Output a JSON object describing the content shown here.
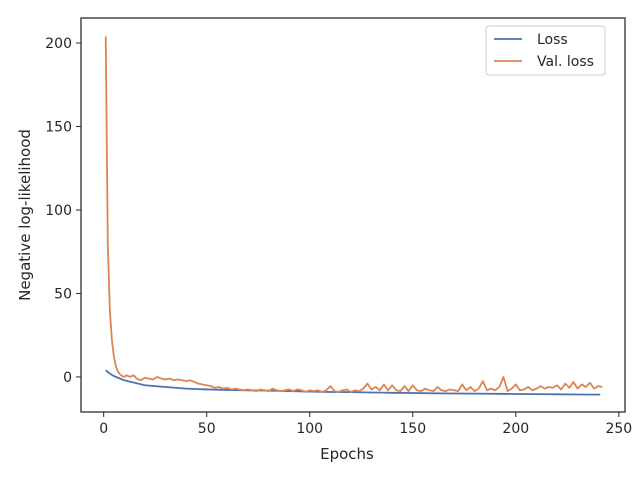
{
  "chart_data": {
    "type": "line",
    "title": "",
    "xlabel": "Epochs",
    "ylabel": "Negative log-likelihood",
    "xlim": [
      -11,
      253
    ],
    "ylim": [
      -21,
      215
    ],
    "xticks": [
      0,
      50,
      100,
      150,
      200,
      250
    ],
    "yticks": [
      0,
      50,
      100,
      150,
      200
    ],
    "grid": false,
    "legend_position": "top-right",
    "series": [
      {
        "name": "Loss",
        "color": "#4c72b0",
        "x": [
          1,
          3,
          5,
          8,
          10,
          15,
          20,
          25,
          30,
          40,
          50,
          60,
          70,
          80,
          90,
          100,
          110,
          120,
          130,
          140,
          150,
          160,
          170,
          180,
          190,
          200,
          210,
          220,
          230,
          241
        ],
        "y": [
          4,
          2,
          0.5,
          -1,
          -2,
          -3.5,
          -5,
          -5.5,
          -6,
          -7,
          -7.5,
          -7.8,
          -8,
          -8.2,
          -8.5,
          -8.8,
          -9,
          -9.1,
          -9.3,
          -9.5,
          -9.6,
          -9.8,
          -9.9,
          -10,
          -10.1,
          -10.2,
          -10.3,
          -10.4,
          -10.5,
          -10.6
        ]
      },
      {
        "name": "Val. loss",
        "color": "#dd8452",
        "x": [
          1,
          2,
          3,
          4,
          5,
          6,
          7,
          8,
          9,
          10,
          11,
          12,
          13,
          14,
          15,
          16,
          18,
          20,
          22,
          24,
          26,
          28,
          30,
          32,
          34,
          36,
          38,
          40,
          42,
          44,
          46,
          48,
          50,
          52,
          54,
          56,
          58,
          60,
          62,
          64,
          66,
          68,
          70,
          72,
          74,
          76,
          78,
          80,
          82,
          84,
          86,
          88,
          90,
          92,
          94,
          96,
          98,
          100,
          102,
          104,
          106,
          108,
          110,
          112,
          114,
          116,
          118,
          120,
          122,
          124,
          126,
          128,
          130,
          132,
          134,
          136,
          138,
          140,
          142,
          144,
          146,
          148,
          150,
          152,
          154,
          156,
          158,
          160,
          162,
          164,
          166,
          168,
          170,
          172,
          174,
          176,
          178,
          180,
          182,
          184,
          186,
          188,
          190,
          192,
          194,
          196,
          198,
          200,
          202,
          204,
          206,
          208,
          210,
          212,
          214,
          216,
          218,
          220,
          222,
          224,
          226,
          228,
          230,
          232,
          234,
          236,
          238,
          240,
          242
        ],
        "y": [
          204,
          80,
          40,
          22,
          12,
          6,
          3,
          1.5,
          0.5,
          0,
          1,
          0.5,
          0,
          1,
          0.5,
          -1,
          -2,
          -0.5,
          -1,
          -1.5,
          0,
          -1,
          -1.5,
          -1,
          -2,
          -1.5,
          -2,
          -2.5,
          -2,
          -3,
          -4,
          -4.5,
          -5,
          -5.5,
          -6.5,
          -6,
          -7,
          -6.5,
          -7.5,
          -7,
          -7.5,
          -8,
          -7.5,
          -8,
          -8.5,
          -7.5,
          -8,
          -8.5,
          -7,
          -8,
          -8.5,
          -8,
          -7.5,
          -8.5,
          -7.5,
          -8,
          -9,
          -8,
          -8.5,
          -8,
          -9,
          -8,
          -5.5,
          -8.5,
          -9,
          -8,
          -7.5,
          -9,
          -8,
          -8.5,
          -7,
          -4,
          -7.5,
          -6,
          -8,
          -4.5,
          -8,
          -5,
          -8,
          -8.5,
          -5.5,
          -8.5,
          -5,
          -8,
          -8.5,
          -7,
          -8,
          -8.5,
          -6,
          -8,
          -8.5,
          -7.5,
          -8,
          -8.5,
          -4.5,
          -8,
          -6,
          -8.5,
          -7,
          -2.5,
          -8,
          -7,
          -8,
          -6,
          0,
          -8.5,
          -7,
          -4.5,
          -8,
          -7.5,
          -6,
          -8,
          -7,
          -5.5,
          -7,
          -6,
          -6.5,
          -5,
          -7.5,
          -4,
          -6.5,
          -3,
          -7,
          -4.5,
          -6,
          -3.5,
          -7,
          -5.5,
          -6
        ]
      }
    ]
  }
}
